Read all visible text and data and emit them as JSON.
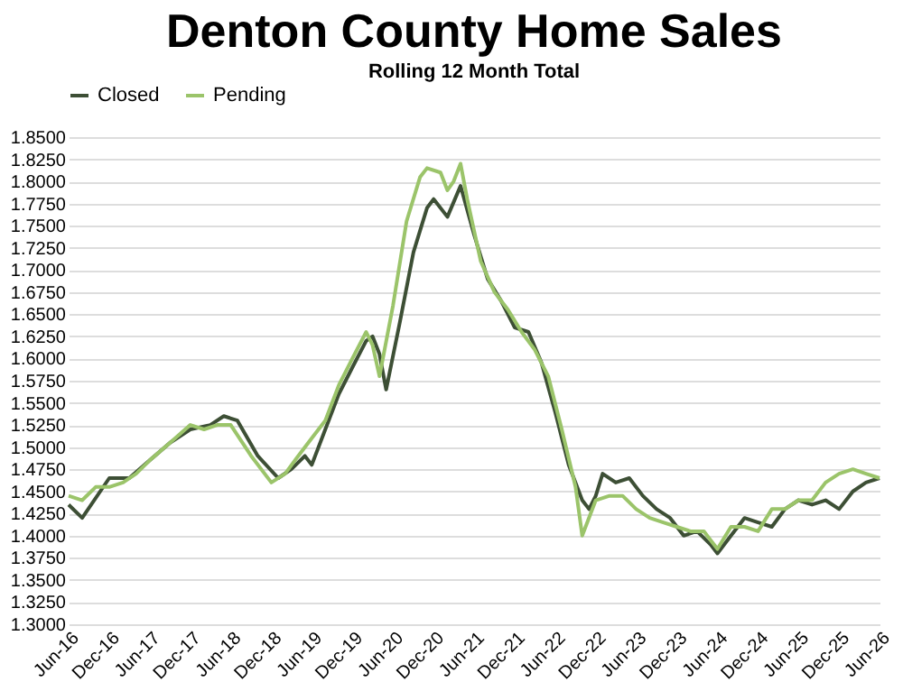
{
  "chart_data": {
    "type": "line",
    "title": "Denton County Home Sales",
    "subtitle": "Rolling 12 Month Total",
    "series": [
      {
        "name": "Closed",
        "color": "#3d4f35",
        "x": [
          "2016-06",
          "2016-08",
          "2016-12",
          "2017-03",
          "2017-06",
          "2017-09",
          "2017-12",
          "2018-03",
          "2018-05",
          "2018-07",
          "2018-10",
          "2019-01",
          "2019-03",
          "2019-05",
          "2019-06",
          "2019-08",
          "2019-10",
          "2019-12",
          "2020-02",
          "2020-03",
          "2020-04",
          "2020-05",
          "2020-07",
          "2020-09",
          "2020-11",
          "2020-12",
          "2021-02",
          "2021-04",
          "2021-06",
          "2021-08",
          "2021-10",
          "2021-12",
          "2022-02",
          "2022-04",
          "2022-06",
          "2022-08",
          "2022-10",
          "2022-11",
          "2022-12",
          "2023-01",
          "2023-03",
          "2023-05",
          "2023-07",
          "2023-09",
          "2023-11",
          "2024-01",
          "2024-03",
          "2024-05",
          "2024-06",
          "2024-08",
          "2024-10",
          "2024-12",
          "2025-02",
          "2025-04",
          "2025-06",
          "2025-08",
          "2025-10",
          "2025-12",
          "2026-02",
          "2026-04",
          "2026-06"
        ],
        "values": [
          1.435,
          1.42,
          1.465,
          1.465,
          1.485,
          1.505,
          1.52,
          1.525,
          1.535,
          1.53,
          1.49,
          1.465,
          1.475,
          1.49,
          1.48,
          1.52,
          1.56,
          1.59,
          1.62,
          1.625,
          1.605,
          1.565,
          1.64,
          1.72,
          1.77,
          1.78,
          1.76,
          1.795,
          1.74,
          1.69,
          1.665,
          1.635,
          1.63,
          1.595,
          1.54,
          1.48,
          1.44,
          1.43,
          1.445,
          1.47,
          1.46,
          1.465,
          1.445,
          1.43,
          1.42,
          1.4,
          1.405,
          1.39,
          1.38,
          1.4,
          1.42,
          1.415,
          1.41,
          1.43,
          1.44,
          1.435,
          1.44,
          1.43,
          1.45,
          1.46,
          1.465
        ]
      },
      {
        "name": "Pending",
        "color": "#9bc46a",
        "x": [
          "2016-06",
          "2016-08",
          "2016-10",
          "2016-12",
          "2017-02",
          "2017-04",
          "2017-06",
          "2017-09",
          "2017-12",
          "2018-02",
          "2018-04",
          "2018-06",
          "2018-09",
          "2018-12",
          "2019-02",
          "2019-04",
          "2019-06",
          "2019-08",
          "2019-10",
          "2019-12",
          "2020-02",
          "2020-03",
          "2020-04",
          "2020-06",
          "2020-08",
          "2020-10",
          "2020-11",
          "2021-01",
          "2021-02",
          "2021-03",
          "2021-04",
          "2021-05",
          "2021-07",
          "2021-09",
          "2021-11",
          "2022-01",
          "2022-03",
          "2022-05",
          "2022-07",
          "2022-09",
          "2022-10",
          "2022-12",
          "2023-02",
          "2023-04",
          "2023-06",
          "2023-08",
          "2023-10",
          "2023-12",
          "2024-02",
          "2024-04",
          "2024-05",
          "2024-06",
          "2024-08",
          "2024-10",
          "2024-12",
          "2025-02",
          "2025-04",
          "2025-06",
          "2025-08",
          "2025-10",
          "2025-12",
          "2026-02",
          "2026-04",
          "2026-06"
        ],
        "values": [
          1.445,
          1.44,
          1.455,
          1.455,
          1.46,
          1.47,
          1.485,
          1.505,
          1.525,
          1.52,
          1.525,
          1.525,
          1.49,
          1.46,
          1.47,
          1.49,
          1.51,
          1.53,
          1.57,
          1.6,
          1.63,
          1.615,
          1.58,
          1.66,
          1.755,
          1.805,
          1.815,
          1.81,
          1.79,
          1.8,
          1.82,
          1.78,
          1.71,
          1.675,
          1.655,
          1.63,
          1.61,
          1.58,
          1.52,
          1.455,
          1.4,
          1.44,
          1.445,
          1.445,
          1.43,
          1.42,
          1.415,
          1.41,
          1.405,
          1.405,
          1.395,
          1.385,
          1.41,
          1.41,
          1.405,
          1.43,
          1.43,
          1.44,
          1.44,
          1.46,
          1.47,
          1.475,
          1.47,
          1.465
        ]
      }
    ],
    "xlim": [
      "2016-06",
      "2026-06"
    ],
    "xticks": [
      {
        "value": "2016-06",
        "label": "Jun-16"
      },
      {
        "value": "2016-12",
        "label": "Dec-16"
      },
      {
        "value": "2017-06",
        "label": "Jun-17"
      },
      {
        "value": "2017-12",
        "label": "Dec-17"
      },
      {
        "value": "2018-06",
        "label": "Jun-18"
      },
      {
        "value": "2018-12",
        "label": "Dec-18"
      },
      {
        "value": "2019-06",
        "label": "Jun-19"
      },
      {
        "value": "2019-12",
        "label": "Dec-19"
      },
      {
        "value": "2020-06",
        "label": "Jun-20"
      },
      {
        "value": "2020-12",
        "label": "Dec-20"
      },
      {
        "value": "2021-06",
        "label": "Jun-21"
      },
      {
        "value": "2021-12",
        "label": "Dec-21"
      },
      {
        "value": "2022-06",
        "label": "Jun-22"
      },
      {
        "value": "2022-12",
        "label": "Dec-22"
      },
      {
        "value": "2023-06",
        "label": "Jun-23"
      },
      {
        "value": "2023-12",
        "label": "Dec-23"
      },
      {
        "value": "2024-06",
        "label": "Jun-24"
      },
      {
        "value": "2024-12",
        "label": "Dec-24"
      },
      {
        "value": "2025-06",
        "label": "Jun-25"
      },
      {
        "value": "2025-12",
        "label": "Dec-25"
      },
      {
        "value": "2026-06",
        "label": "Jun-26"
      }
    ],
    "ylim": [
      1.3,
      1.85
    ],
    "yticks": [
      {
        "value": 1.3,
        "label": "1.3000"
      },
      {
        "value": 1.325,
        "label": "1.3250"
      },
      {
        "value": 1.35,
        "label": "1.3500"
      },
      {
        "value": 1.375,
        "label": "1.3750"
      },
      {
        "value": 1.4,
        "label": "1.4000"
      },
      {
        "value": 1.425,
        "label": "1.4250"
      },
      {
        "value": 1.45,
        "label": "1.4500"
      },
      {
        "value": 1.475,
        "label": "1.4750"
      },
      {
        "value": 1.5,
        "label": "1.5000"
      },
      {
        "value": 1.525,
        "label": "1.5250"
      },
      {
        "value": 1.55,
        "label": "1.5500"
      },
      {
        "value": 1.575,
        "label": "1.5750"
      },
      {
        "value": 1.6,
        "label": "1.6000"
      },
      {
        "value": 1.625,
        "label": "1.6250"
      },
      {
        "value": 1.65,
        "label": "1.6500"
      },
      {
        "value": 1.675,
        "label": "1.6750"
      },
      {
        "value": 1.7,
        "label": "1.7000"
      },
      {
        "value": 1.725,
        "label": "1.7250"
      },
      {
        "value": 1.75,
        "label": "1.7500"
      },
      {
        "value": 1.775,
        "label": "1.7750"
      },
      {
        "value": 1.8,
        "label": "1.8000"
      },
      {
        "value": 1.825,
        "label": "1.8250"
      },
      {
        "value": 1.85,
        "label": "1.8500"
      }
    ],
    "grid": "y",
    "legend": "top",
    "marker": "none",
    "line_style": "solid"
  }
}
